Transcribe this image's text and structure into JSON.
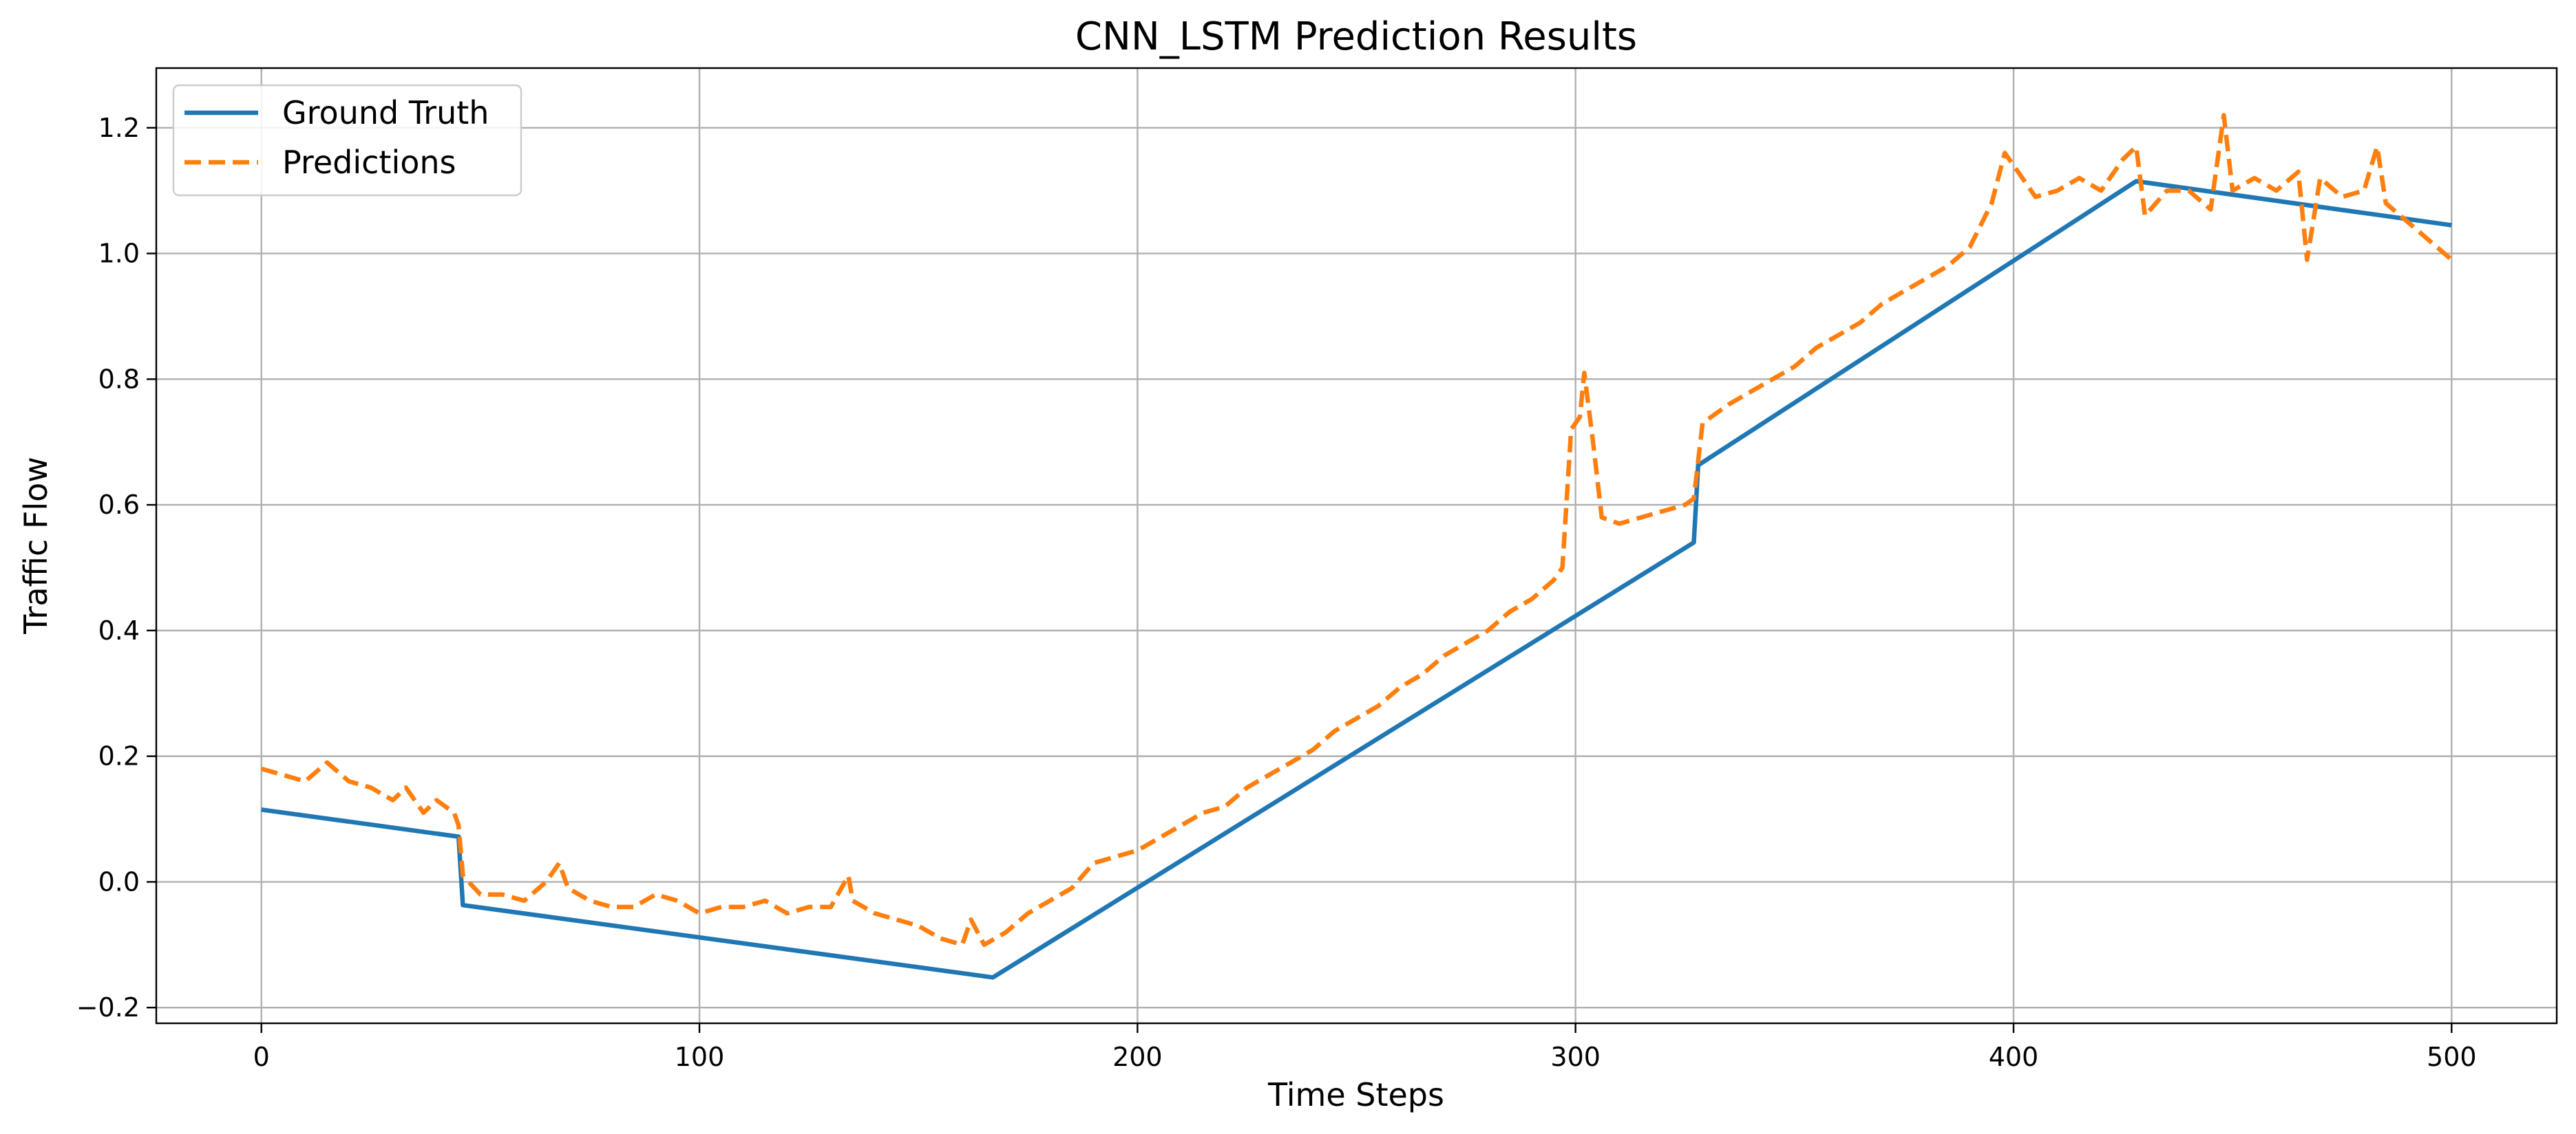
{
  "chart_data": {
    "type": "line",
    "title": "CNN_LSTM Prediction Results",
    "xlabel": "Time Steps",
    "ylabel": "Traffic Flow",
    "xlim": [
      -24,
      524
    ],
    "ylim": [
      -0.225,
      1.295
    ],
    "x_ticks": [
      0,
      100,
      200,
      300,
      400,
      500
    ],
    "y_ticks": [
      -0.2,
      0.0,
      0.2,
      0.4,
      0.6,
      0.8,
      1.0,
      1.2
    ],
    "x_tick_labels": [
      "0",
      "100",
      "200",
      "300",
      "400",
      "500"
    ],
    "y_tick_labels": [
      "−0.2",
      "0.0",
      "0.2",
      "0.4",
      "0.6",
      "0.8",
      "1.0",
      "1.2"
    ],
    "grid": true,
    "legend_position": "top-left",
    "series": [
      {
        "name": "Ground Truth",
        "color": "#1f77b4",
        "style": "solid",
        "points": [
          [
            0,
            0.115
          ],
          [
            45,
            0.072
          ],
          [
            46,
            -0.037
          ],
          [
            167,
            -0.152
          ],
          [
            327,
            0.54
          ],
          [
            328,
            0.663
          ],
          [
            428,
            1.115
          ],
          [
            500,
            1.045
          ]
        ]
      },
      {
        "name": "Predictions",
        "color": "#ff7f0e",
        "style": "dashed",
        "points": [
          [
            0,
            0.18
          ],
          [
            5,
            0.17
          ],
          [
            10,
            0.16
          ],
          [
            15,
            0.19
          ],
          [
            20,
            0.16
          ],
          [
            25,
            0.15
          ],
          [
            30,
            0.13
          ],
          [
            33,
            0.15
          ],
          [
            37,
            0.11
          ],
          [
            40,
            0.13
          ],
          [
            44,
            0.11
          ],
          [
            45,
            0.09
          ],
          [
            46,
            0.01
          ],
          [
            50,
            -0.02
          ],
          [
            55,
            -0.02
          ],
          [
            60,
            -0.03
          ],
          [
            65,
            0.0
          ],
          [
            68,
            0.03
          ],
          [
            70,
            -0.01
          ],
          [
            75,
            -0.03
          ],
          [
            80,
            -0.04
          ],
          [
            85,
            -0.04
          ],
          [
            90,
            -0.02
          ],
          [
            95,
            -0.03
          ],
          [
            100,
            -0.05
          ],
          [
            105,
            -0.04
          ],
          [
            110,
            -0.04
          ],
          [
            115,
            -0.03
          ],
          [
            120,
            -0.05
          ],
          [
            125,
            -0.04
          ],
          [
            130,
            -0.04
          ],
          [
            134,
            0.01
          ],
          [
            135,
            -0.03
          ],
          [
            140,
            -0.05
          ],
          [
            145,
            -0.06
          ],
          [
            150,
            -0.07
          ],
          [
            155,
            -0.09
          ],
          [
            160,
            -0.1
          ],
          [
            162,
            -0.06
          ],
          [
            165,
            -0.1
          ],
          [
            170,
            -0.08
          ],
          [
            175,
            -0.05
          ],
          [
            180,
            -0.03
          ],
          [
            185,
            -0.01
          ],
          [
            190,
            0.03
          ],
          [
            195,
            0.04
          ],
          [
            200,
            0.05
          ],
          [
            205,
            0.07
          ],
          [
            210,
            0.09
          ],
          [
            215,
            0.11
          ],
          [
            220,
            0.12
          ],
          [
            225,
            0.15
          ],
          [
            230,
            0.17
          ],
          [
            235,
            0.19
          ],
          [
            240,
            0.21
          ],
          [
            245,
            0.24
          ],
          [
            250,
            0.26
          ],
          [
            255,
            0.28
          ],
          [
            260,
            0.31
          ],
          [
            265,
            0.33
          ],
          [
            270,
            0.36
          ],
          [
            275,
            0.38
          ],
          [
            280,
            0.4
          ],
          [
            285,
            0.43
          ],
          [
            290,
            0.45
          ],
          [
            295,
            0.48
          ],
          [
            297,
            0.5
          ],
          [
            299,
            0.72
          ],
          [
            301,
            0.74
          ],
          [
            302,
            0.81
          ],
          [
            304,
            0.7
          ],
          [
            306,
            0.58
          ],
          [
            310,
            0.57
          ],
          [
            315,
            0.58
          ],
          [
            320,
            0.59
          ],
          [
            325,
            0.6
          ],
          [
            327,
            0.61
          ],
          [
            329,
            0.73
          ],
          [
            335,
            0.76
          ],
          [
            340,
            0.78
          ],
          [
            345,
            0.8
          ],
          [
            350,
            0.82
          ],
          [
            355,
            0.85
          ],
          [
            360,
            0.87
          ],
          [
            365,
            0.89
          ],
          [
            370,
            0.92
          ],
          [
            375,
            0.94
          ],
          [
            380,
            0.96
          ],
          [
            385,
            0.98
          ],
          [
            390,
            1.01
          ],
          [
            395,
            1.08
          ],
          [
            398,
            1.16
          ],
          [
            400,
            1.14
          ],
          [
            405,
            1.09
          ],
          [
            410,
            1.1
          ],
          [
            415,
            1.12
          ],
          [
            420,
            1.1
          ],
          [
            425,
            1.15
          ],
          [
            428,
            1.17
          ],
          [
            430,
            1.06
          ],
          [
            435,
            1.1
          ],
          [
            440,
            1.1
          ],
          [
            445,
            1.07
          ],
          [
            448,
            1.22
          ],
          [
            450,
            1.1
          ],
          [
            455,
            1.12
          ],
          [
            460,
            1.1
          ],
          [
            465,
            1.13
          ],
          [
            467,
            0.99
          ],
          [
            470,
            1.12
          ],
          [
            475,
            1.09
          ],
          [
            480,
            1.1
          ],
          [
            483,
            1.17
          ],
          [
            485,
            1.08
          ],
          [
            490,
            1.05
          ],
          [
            495,
            1.02
          ],
          [
            500,
            0.99
          ]
        ]
      }
    ]
  }
}
